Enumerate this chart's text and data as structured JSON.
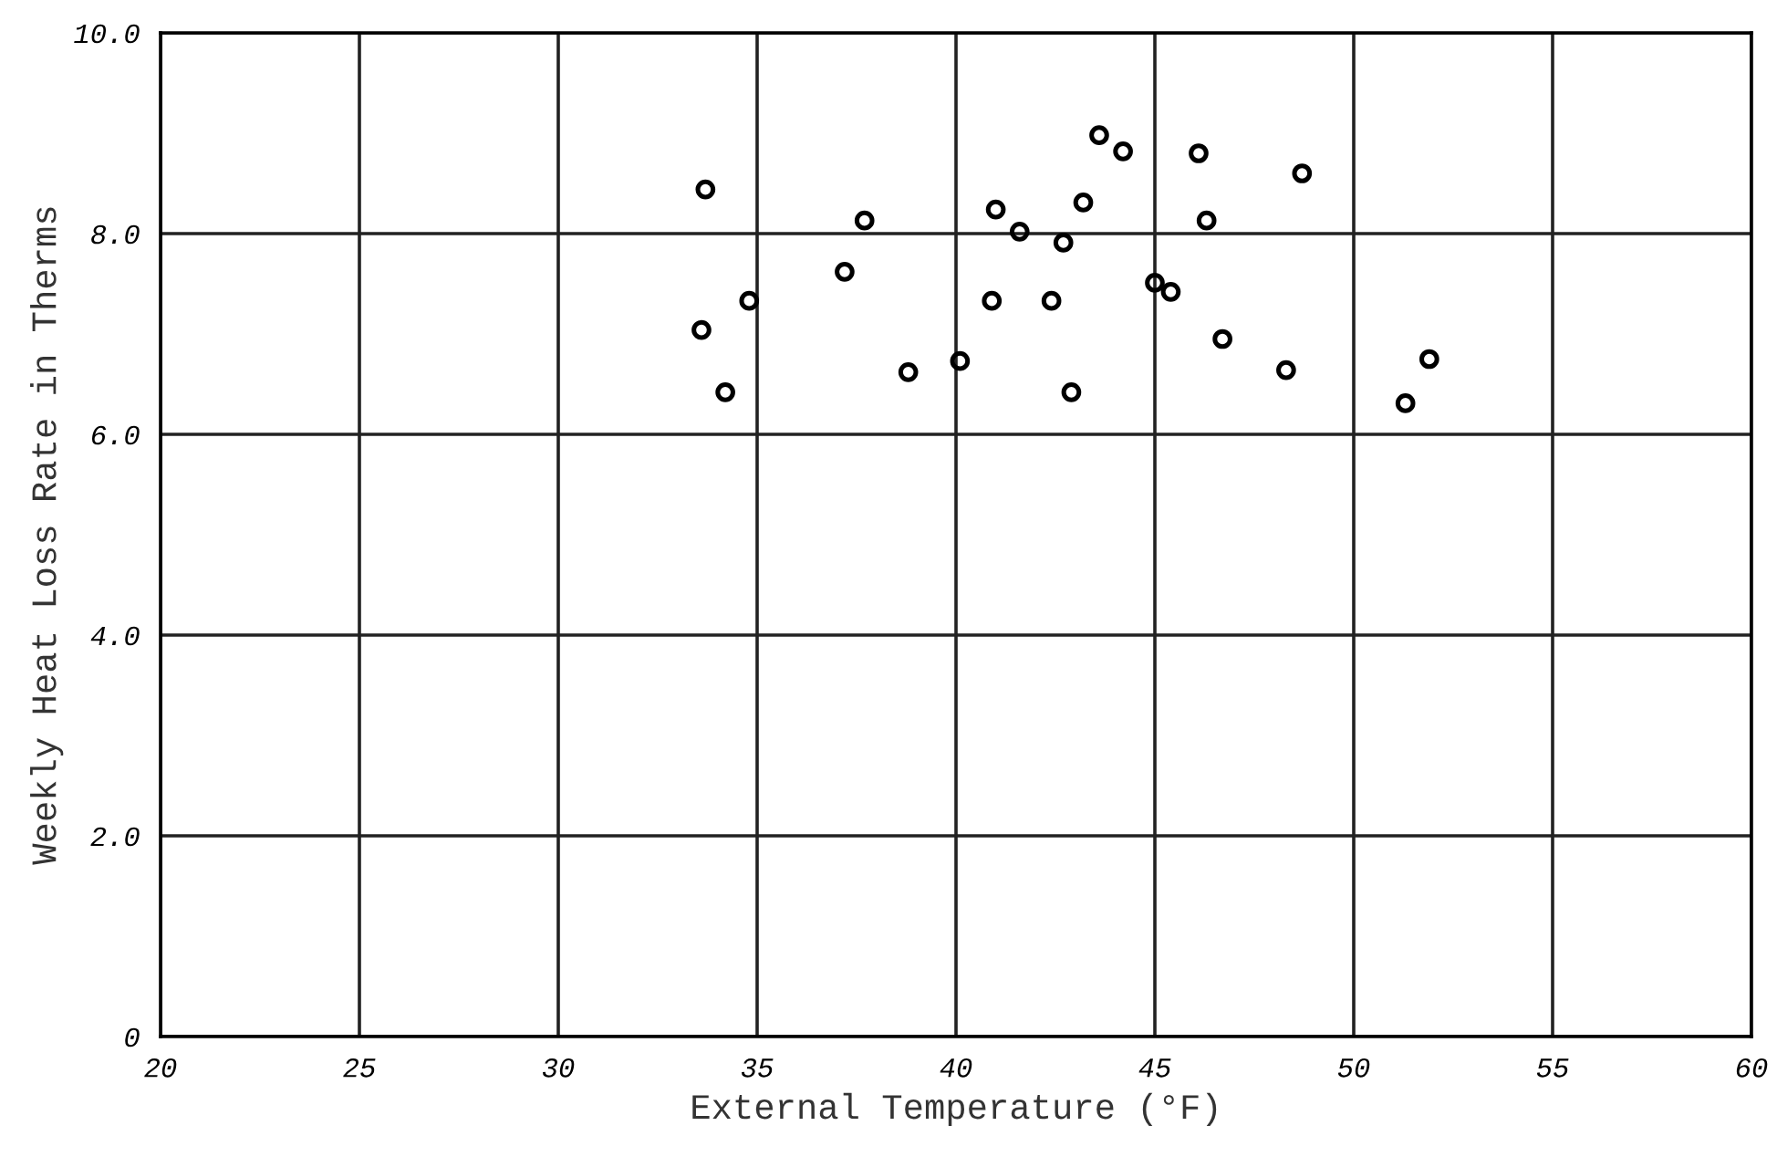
{
  "chart_data": {
    "type": "scatter",
    "xlabel": "External Temperature (°F)",
    "ylabel": "Weekly Heat Loss Rate in Therms",
    "xlim": [
      20,
      60
    ],
    "xticks": [
      20,
      25,
      30,
      35,
      40,
      45,
      50,
      55,
      60
    ],
    "ylim": [
      0,
      10
    ],
    "yticks": [
      0,
      {
        "value": 2,
        "label": "2.0"
      },
      {
        "value": 4,
        "label": "4.0"
      },
      {
        "value": 6,
        "label": "6.0"
      },
      {
        "value": 8,
        "label": "8.0"
      },
      {
        "value": 10,
        "label": "10.0"
      }
    ],
    "grid": true,
    "marker": "circle",
    "legend": false,
    "x": [
      33.7,
      34.8,
      33.6,
      34.2,
      37.7,
      37.2,
      38.8,
      40.1,
      41.0,
      41.6,
      40.9,
      42.4,
      42.7,
      42.9,
      43.2,
      43.6,
      44.2,
      45.0,
      45.4,
      46.1,
      46.3,
      46.7,
      48.3,
      48.7,
      51.3,
      51.9
    ],
    "series": [
      {
        "color": "#000000",
        "values": [
          8.44,
          7.33,
          7.04,
          6.42,
          8.13,
          7.62,
          6.62,
          6.73,
          8.24,
          8.02,
          7.33,
          7.33,
          7.91,
          6.42,
          8.31,
          8.98,
          8.82,
          7.51,
          7.42,
          8.8,
          8.13,
          6.95,
          6.64,
          8.6,
          6.31,
          6.75
        ]
      }
    ]
  }
}
